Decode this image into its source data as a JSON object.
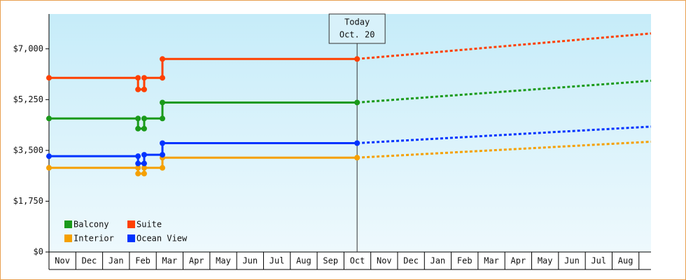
{
  "chart_data": {
    "type": "line",
    "xlim": [
      0,
      22.45
    ],
    "ylim": [
      0,
      8200
    ],
    "yticks": [
      {
        "value": 0,
        "label": "$0"
      },
      {
        "value": 1750,
        "label": "$1,750"
      },
      {
        "value": 3500,
        "label": "$3,500"
      },
      {
        "value": 5250,
        "label": "$5,250"
      },
      {
        "value": 7000,
        "label": "$7,000"
      }
    ],
    "xticks": [
      {
        "value": 0,
        "label": "Nov"
      },
      {
        "value": 1,
        "label": "Dec"
      },
      {
        "value": 2,
        "label": "Jan"
      },
      {
        "value": 3,
        "label": "Feb"
      },
      {
        "value": 4,
        "label": "Mar"
      },
      {
        "value": 5,
        "label": "Apr"
      },
      {
        "value": 6,
        "label": "May"
      },
      {
        "value": 7,
        "label": "Jun"
      },
      {
        "value": 8,
        "label": "Jul"
      },
      {
        "value": 9,
        "label": "Aug"
      },
      {
        "value": 10,
        "label": "Sep"
      },
      {
        "value": 11,
        "label": "Oct"
      },
      {
        "value": 12,
        "label": "Nov"
      },
      {
        "value": 13,
        "label": "Dec"
      },
      {
        "value": 14,
        "label": "Jan"
      },
      {
        "value": 15,
        "label": "Feb"
      },
      {
        "value": 16,
        "label": "Mar"
      },
      {
        "value": 17,
        "label": "Apr"
      },
      {
        "value": 18,
        "label": "May"
      },
      {
        "value": 19,
        "label": "Jun"
      },
      {
        "value": 20,
        "label": "Jul"
      },
      {
        "value": 21,
        "label": "Aug"
      }
    ],
    "x": [
      0,
      3.32,
      3.32,
      3.55,
      3.55,
      4.23,
      4.23,
      11.49
    ],
    "forecast_x": [
      11.49,
      22.45
    ],
    "series": [
      {
        "name": "Balcony",
        "color": "#1a9a1a",
        "values": [
          4600,
          4600,
          4250,
          4250,
          4600,
          4600,
          5150,
          5150
        ],
        "forecast": [
          5150,
          5900
        ]
      },
      {
        "name": "Suite",
        "color": "#ff4000",
        "values": [
          6000,
          6000,
          5600,
          5600,
          6000,
          6000,
          6650,
          6650
        ],
        "forecast": [
          6650,
          7530
        ]
      },
      {
        "name": "Interior",
        "color": "#f5a000",
        "values": [
          2900,
          2900,
          2700,
          2700,
          2900,
          2900,
          3250,
          3250
        ],
        "forecast": [
          3250,
          3800
        ]
      },
      {
        "name": "Ocean View",
        "color": "#0033ff",
        "values": [
          3300,
          3300,
          3050,
          3050,
          3350,
          3350,
          3750,
          3750
        ],
        "forecast": [
          3750,
          4320
        ]
      }
    ],
    "legend": "lower left",
    "annotation": {
      "lines": [
        "Today",
        "Oct. 20"
      ],
      "x": 11.49
    }
  }
}
